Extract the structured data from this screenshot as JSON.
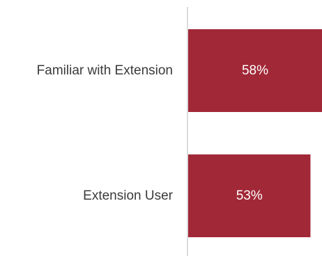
{
  "chart_data": {
    "type": "bar",
    "orientation": "horizontal",
    "categories": [
      "Familiar with Extension",
      "Extension User"
    ],
    "values": [
      58,
      53
    ],
    "value_labels": [
      "58%",
      "53%"
    ],
    "unit": "%",
    "title": "",
    "xlabel": "",
    "ylabel": "",
    "xlim": [
      0,
      58
    ],
    "grid": false,
    "legend": "none",
    "colors": {
      "bar": "#A12837",
      "label_text": "#3a3a3a",
      "value_text": "#ffffff",
      "axis": "#d0d0d0"
    }
  }
}
